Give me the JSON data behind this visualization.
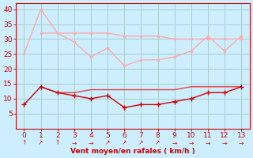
{
  "x": [
    0,
    1,
    2,
    3,
    4,
    5,
    6,
    7,
    8,
    9,
    10,
    11,
    12,
    13
  ],
  "line_pink_upper": [
    25,
    40,
    32,
    29,
    24,
    27,
    21,
    23,
    23,
    24,
    26,
    31,
    26,
    31
  ],
  "line_pink_lower": [
    null,
    32,
    32,
    32,
    32,
    32,
    31,
    31,
    31,
    30,
    30,
    30,
    30,
    30
  ],
  "line_dark_markers": [
    8,
    14,
    12,
    11,
    10,
    11,
    7,
    8,
    8,
    9,
    10,
    12,
    12,
    14
  ],
  "line_medium_red": [
    null,
    14,
    12,
    12,
    13,
    13,
    13,
    13,
    13,
    13,
    14,
    14,
    14,
    14
  ],
  "wind_arrows": [
    [
      0.0,
      1.0
    ],
    [
      0.7,
      0.7
    ],
    [
      0.0,
      1.0
    ],
    [
      1.0,
      0.0
    ],
    [
      1.0,
      0.0
    ],
    [
      0.7,
      0.7
    ],
    [
      0.7,
      0.7
    ],
    [
      0.7,
      0.7
    ],
    [
      0.7,
      0.7
    ],
    [
      1.0,
      0.0
    ],
    [
      1.0,
      0.0
    ],
    [
      1.0,
      0.0
    ],
    [
      1.0,
      0.0
    ],
    [
      1.0,
      0.0
    ]
  ],
  "bg_color": "#cceeff",
  "grid_color": "#aacccc",
  "line_pink_color": "#ffaaaa",
  "line_dark_color": "#cc0000",
  "line_medium_color": "#dd4444",
  "spine_color": "#cc0000",
  "tick_color": "#cc0000",
  "xlabel": "Vent moyen/en rafales ( km/h )",
  "xlabel_color": "#cc0000",
  "ylim": [
    0,
    42
  ],
  "xlim": [
    -0.5,
    13.5
  ],
  "yticks": [
    5,
    10,
    15,
    20,
    25,
    30,
    35,
    40
  ],
  "xticks": [
    0,
    1,
    2,
    3,
    4,
    5,
    6,
    7,
    8,
    9,
    10,
    11,
    12,
    13
  ]
}
